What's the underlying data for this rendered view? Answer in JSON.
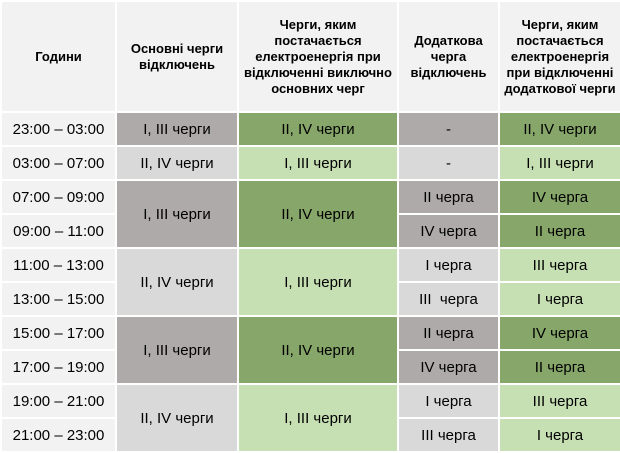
{
  "header": [
    "Години",
    "Основні черги відключень",
    "Черги, яким постачається електроенергія при відключенні виключно основних черг",
    "Додаткова черга відключень",
    "Черги, яким постачається електроенергія при відключенні додаткової черги"
  ],
  "rows": [
    [
      "23:00 – 03:00",
      "I, III черги",
      "II, IV черги",
      "-",
      "II, IV черги"
    ],
    [
      "03:00 – 07:00",
      "II, IV черги",
      "I, III черги",
      "-",
      "I, III черги"
    ],
    [
      "07:00 – 09:00",
      "I, III черги",
      "II, IV черги",
      "II черга",
      "IV черга"
    ],
    [
      "09:00 – 11:00",
      "IV черга",
      "II черга"
    ],
    [
      "11:00 – 13:00",
      "II, IV черги",
      "I, III черги",
      "I черга",
      "III черга"
    ],
    [
      "13:00 – 15:00",
      "III  черга",
      "I черга"
    ],
    [
      "15:00 – 17:00",
      "I, III черги",
      "II, IV черги",
      "II черга",
      "IV черга"
    ],
    [
      "17:00 – 19:00",
      "IV черга",
      "II черга"
    ],
    [
      "19:00 – 21:00",
      "II, IV черги",
      "I, III черги",
      "I черга",
      "III черга"
    ],
    [
      "21:00 – 23:00",
      "III черга",
      "I черга"
    ]
  ]
}
